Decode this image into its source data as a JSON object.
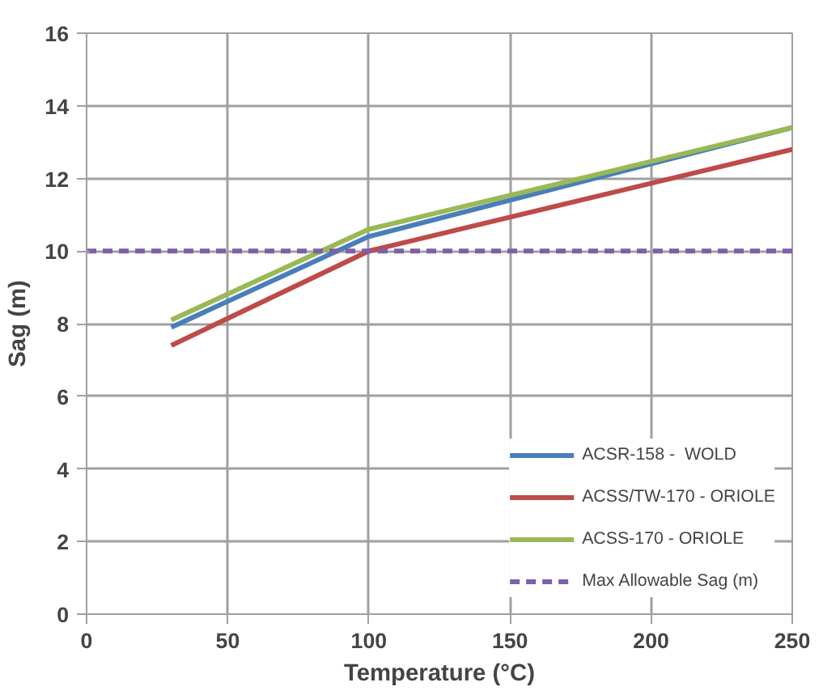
{
  "chart_data": {
    "type": "line",
    "xlabel": "Temperature (°C)",
    "ylabel": "Sag (m)",
    "xlim": [
      0,
      250
    ],
    "ylim": [
      0,
      16
    ],
    "xticks": [
      0,
      50,
      100,
      150,
      200,
      250
    ],
    "yticks": [
      0,
      2,
      4,
      6,
      8,
      10,
      12,
      14,
      16
    ],
    "grid": true,
    "legend": "bottom right",
    "marker": "none",
    "series": [
      {
        "name": "ACSR-158 -  WOLD",
        "color": "#4a7ebb",
        "x": [
          30,
          100,
          250
        ],
        "values": [
          7.9,
          10.4,
          13.4
        ]
      },
      {
        "name": "ACSS/TW-170 - ORIOLE",
        "color": "#be4b48",
        "x": [
          30,
          100,
          250
        ],
        "values": [
          7.4,
          10.0,
          12.8
        ]
      },
      {
        "name": "ACSS-170 - ORIOLE",
        "color": "#98b954",
        "x": [
          30,
          100,
          250
        ],
        "values": [
          8.1,
          10.6,
          13.4
        ]
      },
      {
        "name": "Max Allowable Sag (m)",
        "color": "#7e5fa8",
        "x": [
          0,
          250
        ],
        "values": [
          10,
          10
        ],
        "line_style": "dashed"
      }
    ]
  }
}
